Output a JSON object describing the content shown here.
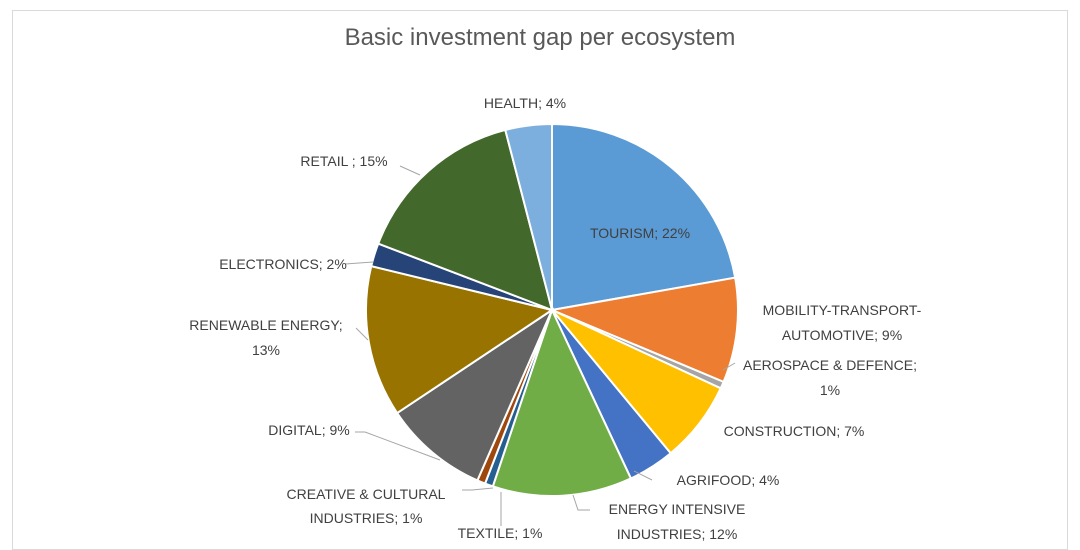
{
  "chart_data": {
    "type": "pie",
    "title": "Basic investment gap per ecosystem",
    "slices": [
      {
        "label": "TOURISM; 22%",
        "value": 22,
        "color": "#5b9bd5"
      },
      {
        "label": "MOBILITY-TRANSPORT-AUTOMOTIVE; 9%",
        "value": 9,
        "color": "#ed7d31"
      },
      {
        "label": "AEROSPACE & DEFENCE; 1%",
        "value": 0.6,
        "color": "#a5a5a5"
      },
      {
        "label": "CONSTRUCTION; 7%",
        "value": 7,
        "color": "#ffc000"
      },
      {
        "label": "AGRIFOOD; 4%",
        "value": 4,
        "color": "#4472c4"
      },
      {
        "label": "ENERGY INTENSIVE INDUSTRIES; 12%",
        "value": 12,
        "color": "#70ad47"
      },
      {
        "label": "TEXTILE; 1%",
        "value": 0.7,
        "color": "#255e91"
      },
      {
        "label": "CREATIVE & CULTURAL INDUSTRIES; 1%",
        "value": 0.7,
        "color": "#9e480e"
      },
      {
        "label": "DIGITAL; 9%",
        "value": 9,
        "color": "#636363"
      },
      {
        "label": "RENEWABLE ENERGY; 13%",
        "value": 13,
        "color": "#997300"
      },
      {
        "label": "ELECTRONICS; 2%",
        "value": 2,
        "color": "#264478"
      },
      {
        "label": "RETAIL ; 15%",
        "value": 15,
        "color": "#43682b"
      },
      {
        "label": "HEALTH; 4%",
        "value": 4,
        "color": "#7cafdd"
      }
    ]
  }
}
